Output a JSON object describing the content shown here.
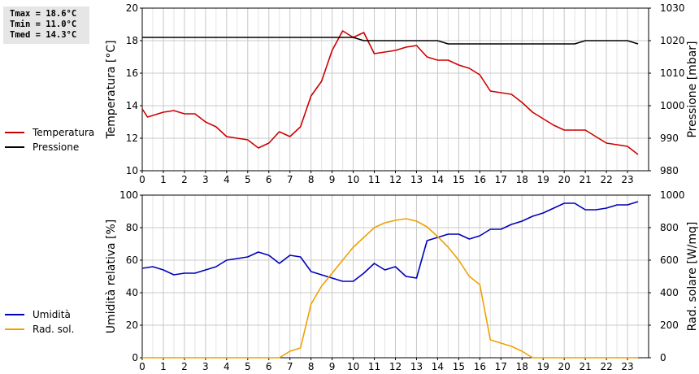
{
  "stats": {
    "tmax": "Tmax = 18.6°C",
    "tmin": "Tmin = 11.0°C",
    "tmed": "Tmed = 14.3°C"
  },
  "chart_data": [
    {
      "type": "line",
      "ylabel": "Temperatura [°C]",
      "y2label": "Pressione [mbar]",
      "ylim": [
        10,
        20
      ],
      "y2lim": [
        980,
        1030
      ],
      "xlim": [
        0,
        24
      ],
      "xticks": [
        "0",
        "1",
        "2",
        "3",
        "4",
        "5",
        "6",
        "7",
        "8",
        "9",
        "10",
        "11",
        "12",
        "13",
        "14",
        "15",
        "16",
        "17",
        "18",
        "19",
        "20",
        "21",
        "22",
        "23"
      ],
      "yticks": [
        "10",
        "12",
        "14",
        "16",
        "18",
        "20"
      ],
      "y2ticks": [
        "980",
        "990",
        "1000",
        "1010",
        "1020",
        "1030"
      ],
      "grid": true,
      "legend": [
        "Temperatura",
        "Pressione"
      ],
      "series": [
        {
          "name": "Temperatura",
          "color": "#cc0000",
          "axis": "left",
          "x": [
            0,
            0.25,
            0.5,
            1,
            1.5,
            2,
            2.5,
            3,
            3.5,
            4,
            4.5,
            5,
            5.5,
            6,
            6.5,
            7,
            7.5,
            8,
            8.5,
            9,
            9.5,
            10,
            10.5,
            11,
            11.5,
            12,
            12.5,
            13,
            13.5,
            14,
            14.5,
            15,
            15.5,
            16,
            16.5,
            17,
            17.5,
            18,
            18.5,
            19,
            19.5,
            20,
            20.5,
            21,
            21.5,
            22,
            22.5,
            23,
            23.5
          ],
          "y": [
            13.8,
            13.3,
            13.4,
            13.6,
            13.7,
            13.5,
            13.5,
            13.0,
            12.7,
            12.1,
            12.0,
            11.9,
            11.4,
            11.7,
            12.4,
            12.1,
            12.7,
            14.6,
            15.5,
            17.4,
            18.6,
            18.2,
            18.5,
            17.2,
            17.3,
            17.4,
            17.6,
            17.7,
            17.0,
            16.8,
            16.8,
            16.5,
            16.3,
            15.9,
            14.9,
            14.8,
            14.7,
            14.2,
            13.6,
            13.2,
            12.8,
            12.5,
            12.5,
            12.5,
            12.1,
            11.7,
            11.6,
            11.5,
            11.0
          ]
        },
        {
          "name": "Pressione",
          "color": "#000000",
          "axis": "right",
          "x": [
            0,
            2,
            4,
            6,
            8,
            10,
            10.5,
            12,
            13,
            14,
            14.5,
            16,
            18,
            20,
            20.5,
            21,
            23,
            23.5
          ],
          "y": [
            1021,
            1021,
            1021,
            1021,
            1021,
            1021,
            1020,
            1020,
            1020,
            1020,
            1019,
            1019,
            1019,
            1019,
            1019,
            1020,
            1020,
            1019
          ]
        }
      ]
    },
    {
      "type": "line",
      "ylabel": "Umidità relativa [%]",
      "y2label": "Rad. solare [W/mq]",
      "ylim": [
        0,
        100
      ],
      "y2lim": [
        0,
        1000
      ],
      "xlim": [
        0,
        24
      ],
      "xticks": [
        "0",
        "1",
        "2",
        "3",
        "4",
        "5",
        "6",
        "7",
        "8",
        "9",
        "10",
        "11",
        "12",
        "13",
        "14",
        "15",
        "16",
        "17",
        "18",
        "19",
        "20",
        "21",
        "22",
        "23"
      ],
      "yticks": [
        "0",
        "20",
        "40",
        "60",
        "80",
        "100"
      ],
      "y2ticks": [
        "0",
        "200",
        "400",
        "600",
        "800",
        "1000"
      ],
      "grid": true,
      "legend": [
        "Umidità",
        "Rad. sol."
      ],
      "series": [
        {
          "name": "Umidità",
          "color": "#0000bb",
          "axis": "left",
          "x": [
            0,
            0.5,
            1,
            1.5,
            2,
            2.5,
            3,
            3.5,
            4,
            4.5,
            5,
            5.5,
            6,
            6.5,
            7,
            7.5,
            8,
            8.5,
            9,
            9.5,
            10,
            10.5,
            11,
            11.5,
            12,
            12.5,
            13,
            13.5,
            14,
            14.5,
            15,
            15.5,
            16,
            16.5,
            17,
            17.5,
            18,
            18.5,
            19,
            19.5,
            20,
            20.5,
            21,
            21.5,
            22,
            22.5,
            23,
            23.5
          ],
          "y": [
            55,
            56,
            54,
            51,
            52,
            52,
            54,
            56,
            60,
            61,
            62,
            65,
            63,
            58,
            63,
            62,
            53,
            51,
            49,
            47,
            47,
            52,
            58,
            54,
            56,
            50,
            49,
            72,
            74,
            76,
            76,
            73,
            75,
            79,
            79,
            82,
            84,
            87,
            89,
            92,
            95,
            95,
            91,
            91,
            92,
            94,
            94,
            96
          ]
        },
        {
          "name": "Rad. sol.",
          "color": "#f0a000",
          "axis": "right",
          "x": [
            0,
            1,
            2,
            3,
            4,
            5,
            6,
            6.5,
            7,
            7.5,
            8,
            8.5,
            9,
            9.5,
            10,
            10.5,
            11,
            11.5,
            12,
            12.5,
            13,
            13.5,
            14,
            14.5,
            15,
            15.5,
            16,
            16.5,
            17,
            17.5,
            18,
            18.5,
            19,
            20,
            21,
            22,
            23,
            23.5
          ],
          "y": [
            0,
            0,
            0,
            0,
            0,
            0,
            0,
            0,
            40,
            60,
            330,
            440,
            520,
            600,
            680,
            740,
            800,
            830,
            845,
            855,
            840,
            805,
            745,
            680,
            600,
            500,
            450,
            110,
            90,
            70,
            40,
            0,
            0,
            0,
            0,
            0,
            0,
            0
          ]
        }
      ]
    }
  ]
}
